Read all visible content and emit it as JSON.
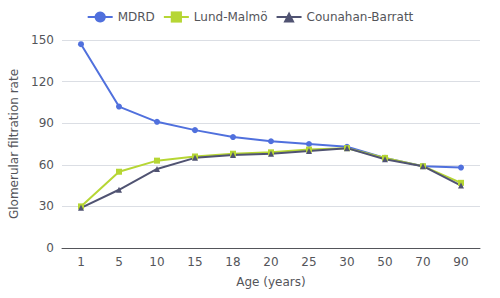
{
  "chart_data": {
    "type": "line",
    "categories": [
      "1",
      "5",
      "10",
      "15",
      "18",
      "20",
      "25",
      "30",
      "50",
      "70",
      "90"
    ],
    "series": [
      {
        "name": "MDRD",
        "marker": "circle",
        "values": [
          147,
          102,
          91,
          85,
          80,
          77,
          75,
          73,
          65,
          59,
          58
        ]
      },
      {
        "name": "Lund-Malmö",
        "marker": "square",
        "values": [
          30,
          55,
          63,
          66,
          68,
          69,
          71,
          72,
          65,
          59,
          47
        ]
      },
      {
        "name": "Counahan-Barratt",
        "marker": "triangle",
        "values": [
          29,
          42,
          57,
          65,
          67,
          68,
          70,
          72,
          64,
          59,
          45
        ]
      }
    ],
    "xlabel": "Age (years)",
    "ylabel": "Glomerular filtration rate",
    "ylim": [
      0,
      150
    ],
    "yticks": [
      0,
      30,
      60,
      90,
      120,
      150
    ],
    "grid": true,
    "legend": "top"
  }
}
